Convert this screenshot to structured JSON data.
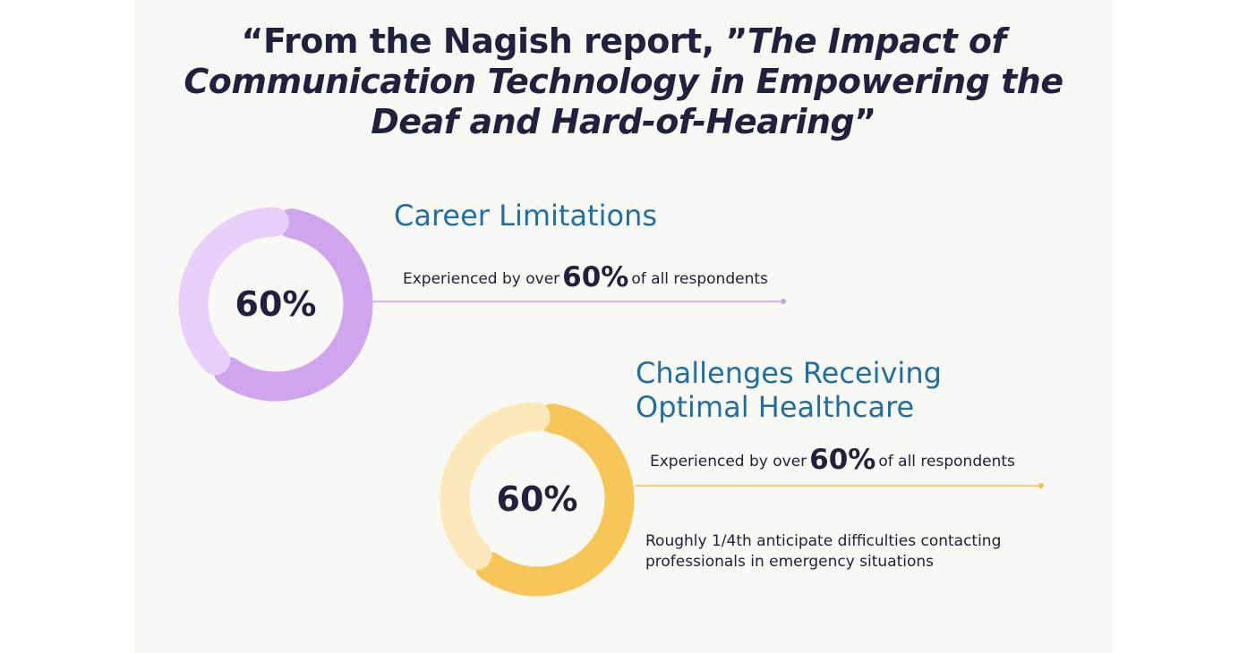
{
  "title": {
    "line1_plain": "“From the Nagish report, ”",
    "line1_italic": "The Impact of",
    "line2": "Communication Technology in Empowering the",
    "line3": "Deaf and Hard-of-Hearing",
    "close_quote": "”"
  },
  "chart_data": [
    {
      "type": "pie",
      "variant": "donut",
      "title": "Career Limitations",
      "center_label": "60%",
      "values": [
        60,
        40
      ],
      "colors": [
        "#cfa6ee",
        "#e8d0fb"
      ],
      "description": {
        "prefix": "Experienced by over",
        "value": "60%",
        "suffix": "of all respondents"
      },
      "line_color": "#c9a0ea"
    },
    {
      "type": "pie",
      "variant": "donut",
      "title_line1": "Challenges Receiving",
      "title_line2": "Optimal Healthcare",
      "center_label": "60%",
      "values": [
        60,
        40
      ],
      "colors": [
        "#f6c758",
        "#fce9bb"
      ],
      "description": {
        "prefix": "Experienced by over",
        "value": "60%",
        "suffix": "of all respondents"
      },
      "note_line1": "Roughly 1/4th anticipate difficulties contacting",
      "note_line2": "professionals in emergency situations",
      "line_color": "#f3c24f"
    }
  ]
}
